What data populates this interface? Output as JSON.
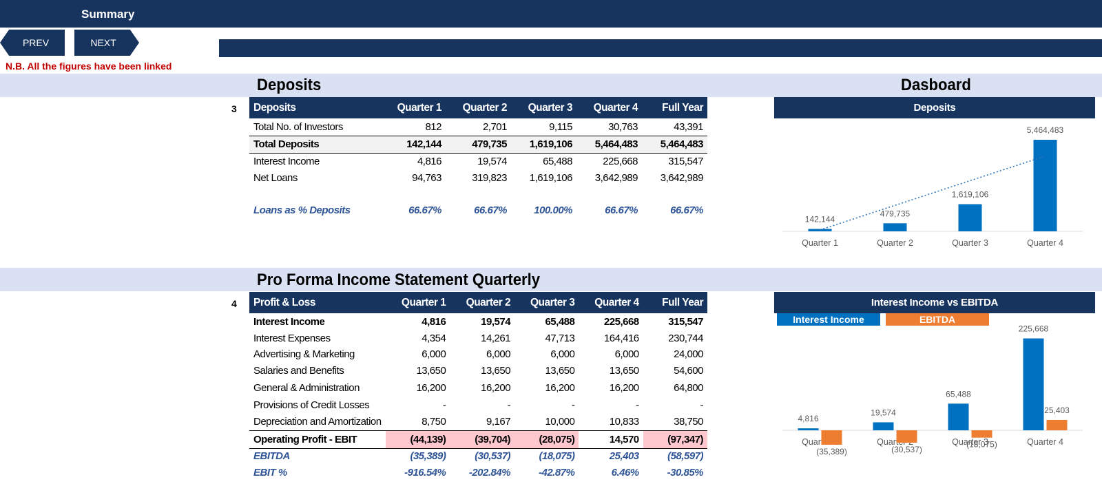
{
  "header": {
    "title": "Summary",
    "prev_label": "PREV",
    "next_label": "NEXT",
    "note": "N.B. All the figures have been linked"
  },
  "deposits_section": {
    "title": "Deposits",
    "dashboard_title": "Dasboard",
    "number": "3",
    "columns": [
      "Deposits",
      "Quarter 1",
      "Quarter 2",
      "Quarter 3",
      "Quarter 4",
      "Full Year"
    ],
    "rows": [
      {
        "label": "Total No. of Investors",
        "values": [
          "812",
          "2,701",
          "9,115",
          "30,763",
          "43,391"
        ]
      },
      {
        "label": "Total Deposits",
        "values": [
          "142,144",
          "479,735",
          "1,619,106",
          "5,464,483",
          "5,464,483"
        ]
      },
      {
        "label": "Interest Income",
        "values": [
          "4,816",
          "19,574",
          "65,488",
          "225,668",
          "315,547"
        ]
      },
      {
        "label": "Net Loans",
        "values": [
          "94,763",
          "319,823",
          "1,619,106",
          "3,642,989",
          "3,642,989"
        ]
      }
    ],
    "pct_row": {
      "label": "Loans as % Deposits",
      "values": [
        "66.67%",
        "66.67%",
        "100.00%",
        "66.67%",
        "66.67%"
      ]
    }
  },
  "income_section": {
    "title": "Pro Forma Income Statement Quarterly",
    "number": "4",
    "columns": [
      "Profit & Loss",
      "Quarter 1",
      "Quarter 2",
      "Quarter 3",
      "Quarter 4",
      "Full Year"
    ],
    "rows": [
      {
        "label": "Interest Income",
        "values": [
          "4,816",
          "19,574",
          "65,488",
          "225,668",
          "315,547"
        ]
      },
      {
        "label": "Interest Expenses",
        "values": [
          "4,354",
          "14,261",
          "47,713",
          "164,416",
          "230,744"
        ]
      },
      {
        "label": "Advertising & Marketing",
        "values": [
          "6,000",
          "6,000",
          "6,000",
          "6,000",
          "24,000"
        ]
      },
      {
        "label": "Salaries and Benefits",
        "values": [
          "13,650",
          "13,650",
          "13,650",
          "13,650",
          "54,600"
        ]
      },
      {
        "label": "General & Administration",
        "values": [
          "16,200",
          "16,200",
          "16,200",
          "16,200",
          "64,800"
        ]
      },
      {
        "label": "Provisions of Credit Losses",
        "values": [
          "-",
          "-",
          "-",
          "-",
          "-"
        ]
      },
      {
        "label": "Depreciation and Amortization",
        "values": [
          "8,750",
          "9,167",
          "10,000",
          "10,833",
          "38,750"
        ]
      }
    ],
    "operating_row": {
      "label": "Operating Profit - EBIT",
      "values": [
        "(44,139)",
        "(39,704)",
        "(28,075)",
        "14,570",
        "(97,347)"
      ]
    },
    "ebitda_row": {
      "label": "EBITDA",
      "values": [
        "(35,389)",
        "(30,537)",
        "(18,075)",
        "25,403",
        "(58,597)"
      ]
    },
    "ebit_pct_row": {
      "label": "EBIT %",
      "values": [
        "-916.54%",
        "-202.84%",
        "-42.87%",
        "6.46%",
        "-30.85%"
      ]
    }
  },
  "chart_data": [
    {
      "type": "bar",
      "title": "Deposits",
      "categories": [
        "Quarter 1",
        "Quarter 2",
        "Quarter 3",
        "Quarter 4"
      ],
      "values": [
        142144,
        479735,
        1619106,
        5464483
      ],
      "data_labels": [
        "142,144",
        "479,735",
        "1,619,106",
        "5,464,483"
      ],
      "trendline": "linear, dotted",
      "ylim": [
        0,
        6000000
      ],
      "color": "#0070c0"
    },
    {
      "type": "bar",
      "title": "Interest Income vs EBITDA",
      "categories": [
        "Quarter 1",
        "Quarter 2",
        "Quarter 3",
        "Quarter 4"
      ],
      "legend_placement": "top",
      "series": [
        {
          "name": "Interest Income",
          "values": [
            4816,
            19574,
            65488,
            225668
          ],
          "labels": [
            "4,816",
            "19,574",
            "65,488",
            "225,668"
          ],
          "color": "#0070c0"
        },
        {
          "name": "EBITDA",
          "values": [
            -35389,
            -30537,
            -18075,
            25403
          ],
          "labels": [
            "(35,389)",
            "(30,537)",
            "(18,075)",
            "25,403"
          ],
          "color": "#ed7d31"
        }
      ],
      "ylim": [
        -50000,
        250000
      ]
    }
  ]
}
